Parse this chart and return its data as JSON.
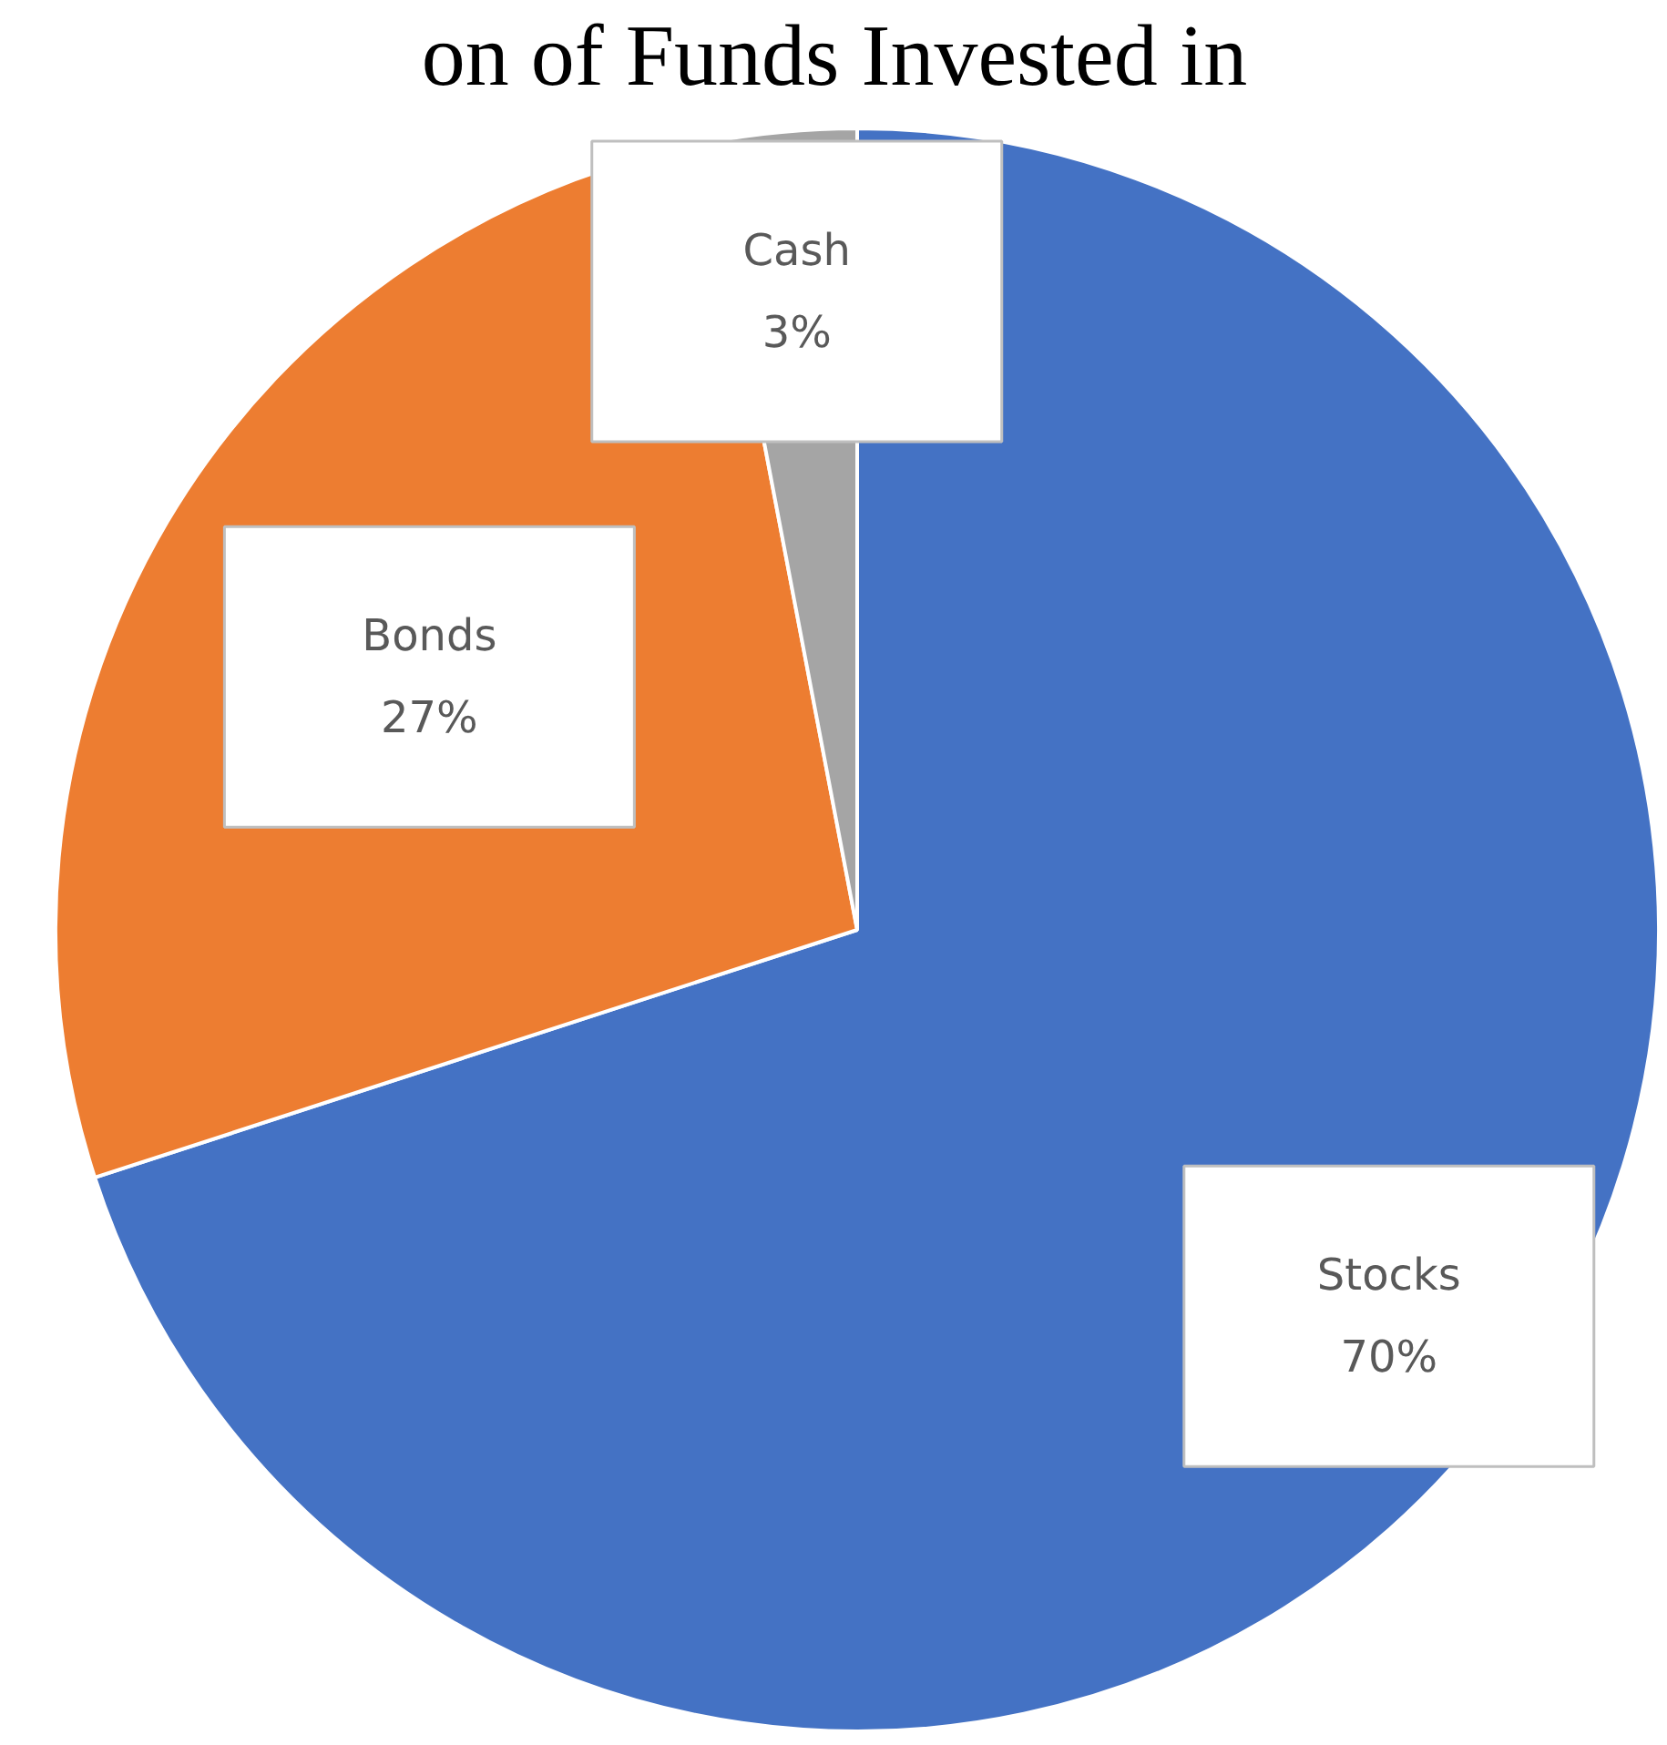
{
  "chart_data": {
    "type": "pie",
    "title": "on of Funds Invested in",
    "categories": [
      "Stocks",
      "Bonds",
      "Cash"
    ],
    "values": [
      70,
      27,
      3
    ],
    "colors": [
      "#4472c4",
      "#ed7d31",
      "#a5a5a5"
    ],
    "value_labels": [
      "70%",
      "27%",
      "3%"
    ],
    "legend": false
  }
}
